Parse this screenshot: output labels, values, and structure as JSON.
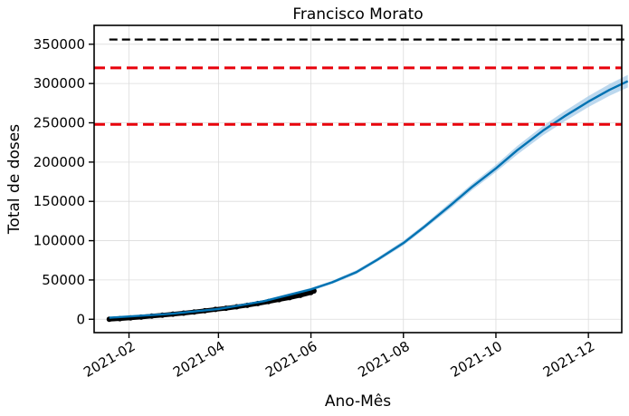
{
  "chart_data": {
    "type": "line",
    "title": "Francisco Morato",
    "xlabel": "Ano-Mês",
    "ylabel": "Total de doses",
    "x_tick_labels": [
      "2021-02",
      "2021-04",
      "2021-06",
      "2021-08",
      "2021-10",
      "2021-12"
    ],
    "x_tick_dates": [
      "2021-02-01",
      "2021-04-01",
      "2021-06-01",
      "2021-08-01",
      "2021-10-01",
      "2021-12-01"
    ],
    "xlim": [
      "2021-01-09",
      "2021-12-23"
    ],
    "y_tick_values": [
      0,
      50000,
      100000,
      150000,
      200000,
      250000,
      300000,
      350000
    ],
    "y_tick_labels": [
      "0",
      "50000",
      "100000",
      "150000",
      "200000",
      "250000",
      "300000",
      "350000"
    ],
    "ylim": [
      -17000,
      374000
    ],
    "grid": true,
    "series": [
      {
        "role": "observed",
        "color": "#000000",
        "x": [
          "2021-01-19",
          "2021-01-26",
          "2021-02-02",
          "2021-02-09",
          "2021-02-16",
          "2021-02-23",
          "2021-03-02",
          "2021-03-09",
          "2021-03-16",
          "2021-03-23",
          "2021-03-30",
          "2021-04-06",
          "2021-04-13",
          "2021-04-20",
          "2021-04-27",
          "2021-05-04",
          "2021-05-11",
          "2021-05-18",
          "2021-05-25",
          "2021-06-01",
          "2021-06-03"
        ],
        "y": [
          0,
          800,
          1800,
          2800,
          4000,
          5200,
          6500,
          7800,
          9200,
          10800,
          12500,
          14000,
          15800,
          17800,
          20000,
          22500,
          25000,
          27500,
          30500,
          34000,
          36000
        ]
      },
      {
        "role": "forecast",
        "color": "#0072b2",
        "band_color": "#a6cbe8",
        "x": [
          "2021-01-19",
          "2021-02-01",
          "2021-03-01",
          "2021-04-01",
          "2021-05-01",
          "2021-06-01",
          "2021-06-15",
          "2021-07-01",
          "2021-07-15",
          "2021-08-01",
          "2021-08-15",
          "2021-09-01",
          "2021-09-15",
          "2021-10-01",
          "2021-10-15",
          "2021-11-01",
          "2021-11-15",
          "2021-12-01",
          "2021-12-15",
          "2021-12-27"
        ],
        "y": [
          2000,
          3500,
          7000,
          13000,
          23000,
          38000,
          47000,
          60000,
          76000,
          97000,
          118000,
          145000,
          168000,
          192000,
          215000,
          240000,
          258000,
          277000,
          292000,
          303000
        ],
        "lower": [
          1000,
          2500,
          6000,
          12000,
          21500,
          36000,
          45000,
          57500,
          73500,
          94000,
          115000,
          141000,
          164000,
          187500,
          209500,
          234000,
          251500,
          270000,
          284500,
          295000
        ],
        "upper": [
          3000,
          4500,
          8000,
          14000,
          24500,
          40000,
          49000,
          62500,
          78500,
          100000,
          121000,
          149000,
          172000,
          196500,
          220500,
          246000,
          264500,
          284000,
          299500,
          311000
        ]
      }
    ],
    "reference_lines": [
      {
        "y": 356000,
        "x_start": "2021-01-19",
        "x_end": "2021-12-27",
        "color": "#000000",
        "style": "dashed"
      },
      {
        "y": 320000,
        "color": "#e8000b",
        "style": "dashed",
        "full_width": true
      },
      {
        "y": 248000,
        "color": "#e8000b",
        "style": "dashed",
        "full_width": true
      }
    ]
  }
}
